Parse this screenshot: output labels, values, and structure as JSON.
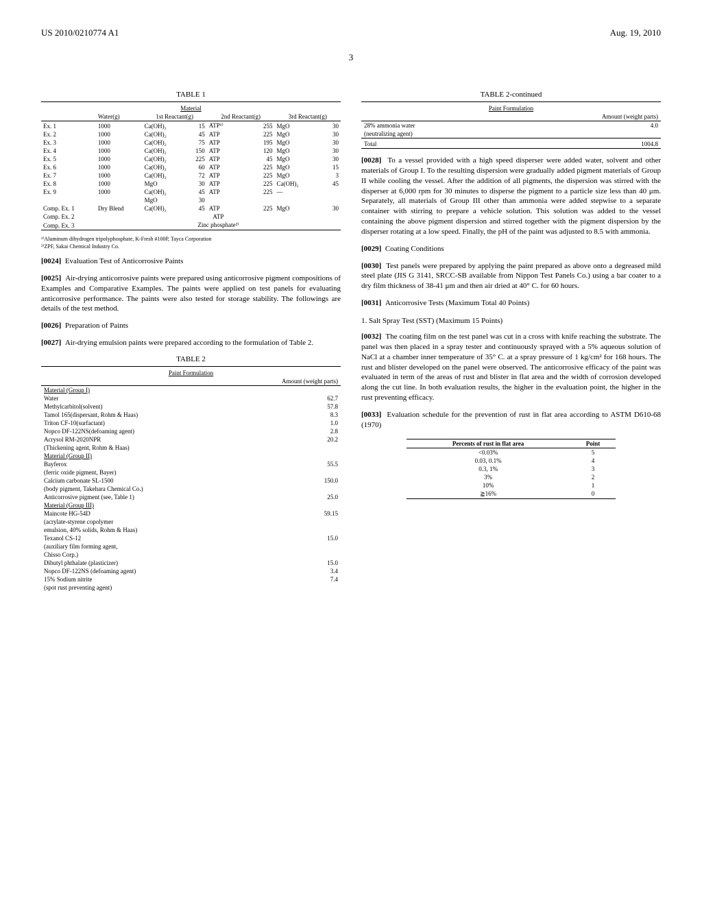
{
  "header": {
    "pub_number": "US 2010/0210774 A1",
    "date": "Aug. 19, 2010",
    "page": "3"
  },
  "table1": {
    "title": "TABLE 1",
    "subtitle": "Material",
    "head": {
      "c1": "",
      "c2": "Water(g)",
      "c3": "1st Reactant(g)",
      "c5": "2nd Reactant(g)",
      "c7": "3rd Reactant(g)"
    },
    "rows": [
      {
        "label": "Ex. 1",
        "water": "1000",
        "r1": "Ca(OH)₂",
        "r1g": "15",
        "r2": "ATP¹⁾",
        "r2g": "255",
        "r3": "MgO",
        "r3g": "30"
      },
      {
        "label": "Ex. 2",
        "water": "1000",
        "r1": "Ca(OH)₂",
        "r1g": "45",
        "r2": "ATP",
        "r2g": "225",
        "r3": "MgO",
        "r3g": "30"
      },
      {
        "label": "Ex. 3",
        "water": "1000",
        "r1": "Ca(OH)₂",
        "r1g": "75",
        "r2": "ATP",
        "r2g": "195",
        "r3": "MgO",
        "r3g": "30"
      },
      {
        "label": "Ex. 4",
        "water": "1000",
        "r1": "Ca(OH)₂",
        "r1g": "150",
        "r2": "ATP",
        "r2g": "120",
        "r3": "MgO",
        "r3g": "30"
      },
      {
        "label": "Ex. 5",
        "water": "1000",
        "r1": "Ca(OH)₂",
        "r1g": "225",
        "r2": "ATP",
        "r2g": "45",
        "r3": "MgO",
        "r3g": "30"
      },
      {
        "label": "Ex. 6",
        "water": "1000",
        "r1": "Ca(OH)₂",
        "r1g": "60",
        "r2": "ATP",
        "r2g": "225",
        "r3": "MgO",
        "r3g": "15"
      },
      {
        "label": "Ex. 7",
        "water": "1000",
        "r1": "Ca(OH)₂",
        "r1g": "72",
        "r2": "ATP",
        "r2g": "225",
        "r3": "MgO",
        "r3g": "3"
      },
      {
        "label": "Ex. 8",
        "water": "1000",
        "r1": "MgO",
        "r1g": "30",
        "r2": "ATP",
        "r2g": "225",
        "r3": "Ca(OH)₂",
        "r3g": "45"
      },
      {
        "label": "Ex. 9",
        "water": "1000",
        "r1": "Ca(OH)₂",
        "r1g": "45",
        "r2": "ATP",
        "r2g": "225",
        "r3": "—",
        "r3g": ""
      },
      {
        "label": "",
        "water": "",
        "r1": "MgO",
        "r1g": "30",
        "r2": "",
        "r2g": "",
        "r3": "",
        "r3g": ""
      },
      {
        "label": "Comp. Ex. 1",
        "water": "Dry Blend",
        "r1": "Ca(OH)₂",
        "r1g": "45",
        "r2": "ATP",
        "r2g": "225",
        "r3": "MgO",
        "r3g": "30"
      }
    ],
    "comp2": {
      "label": "Comp. Ex. 2",
      "text": "ATP"
    },
    "comp3": {
      "label": "Comp. Ex. 3",
      "text": "Zinc phosphate²⁾"
    },
    "fn1": "¹⁾Aluminum dihydrogen tripolyphosphate, K-Fresh #100P, Tayca Corporation",
    "fn2": "²⁾ZPF, Sakai Chemical Industry Co."
  },
  "paras": {
    "p24n": "[0024]",
    "p24": "Evaluation Test of Anticorrosive Paints",
    "p25n": "[0025]",
    "p25": "Air-drying anticorrosive paints were prepared using anticorrosive pigment compositions of Examples and Comparative Examples. The paints were applied on test panels for evaluating anticorrosive performance. The paints were also tested for storage stability. The followings are details of the test method.",
    "p26n": "[0026]",
    "p26": "Preparation of Paints",
    "p27n": "[0027]",
    "p27": "Air-drying emulsion paints were prepared according to the formulation of Table 2.",
    "p28n": "[0028]",
    "p28": "To a vessel provided with a high speed disperser were added water, solvent and other materials of Group I. To the resulting dispersion were gradually added pigment materials of Group II while cooling the vessel. After the addition of all pigments, the dispersion was stirred with the disperser at 6,000 rpm for 30 minutes to disperse the pigment to a particle size less than 40 μm. Separately, all materials of Group III other than ammonia were added stepwise to a separate container with stirring to prepare a vehicle solution. This solution was added to the vessel containing the above pigment dispersion and stirred together with the pigment dispersion by the disperser rotating at a low speed. Finally, the pH of the paint was adjusted to 8.5 with ammonia.",
    "p29n": "[0029]",
    "p29": "Coating Conditions",
    "p30n": "[0030]",
    "p30": "Test panels were prepared by applying the paint prepared as above onto a degreased mild steel plate (JIS G 3141, SRCC-SB available from Nippon Test Panels Co.) using a bar coater to a dry film thickness of 38-41 μm and then air dried at 40° C. for 60 hours.",
    "p31n": "[0031]",
    "p31": "Anticorrosive Tests (Maximum Total 40 Points)",
    "sst": "1. Salt Spray Test (SST) (Maximum 15 Points)",
    "p32n": "[0032]",
    "p32": "The coating film on the test panel was cut in a cross with knife reaching the substrate. The panel was then placed in a spray tester and continuously sprayed with a 5% aqueous solution of NaCl at a chamber inner temperature of 35° C. at a spray pressure of 1 kg/cm² for 168 hours. The rust and blister developed on the panel were observed. The anticorrosive efficacy of the paint was evaluated in term of the areas of rust and blister in flat area and the width of corrosion developed along the cut line. In both evaluation results, the higher in the evaluation point, the higher in the rust preventing efficacy.",
    "p33n": "[0033]",
    "p33": "Evaluation schedule for the prevention of rust in flat area according to ASTM D610-68 (1970)"
  },
  "table2": {
    "title": "TABLE 2",
    "subtitle": "Paint Formulation",
    "amount_head": "Amount (weight parts)",
    "g1": "Material (Group I)",
    "g1rows": [
      {
        "l": "Water",
        "v": "62.7"
      },
      {
        "l": "Methylcarbitol(solvent)",
        "v": "57.8"
      },
      {
        "l": "Tamol 165(dispersant, Rohm & Haas)",
        "v": "8.3"
      },
      {
        "l": "Triton CF-10(surfactant)",
        "v": "1.0"
      },
      {
        "l": "Nopco DF-122NS(defoaming agent)",
        "v": "2.8"
      },
      {
        "l": "Acrysol RM-2020NPR",
        "v": "20.2"
      },
      {
        "l": "(Thickening agent, Rohm & Haas)",
        "v": ""
      }
    ],
    "g2": "Material (Group II)",
    "g2rows": [
      {
        "l": "Bayferox",
        "v": "55.5"
      },
      {
        "l": "(ferric oxide pigment, Bayer)",
        "v": ""
      },
      {
        "l": "Calcium carbonate SL-1500",
        "v": "150.0"
      },
      {
        "l": "(body pigment, Takehara Chemical Co.)",
        "v": ""
      },
      {
        "l": "Anticorrosive pigment (see, Table 1)",
        "v": "25.0"
      }
    ],
    "g3": "Material (Group III)",
    "g3rows": [
      {
        "l": "Maincote HG-54D",
        "v": "59.15"
      },
      {
        "l": "(acrylate-styrene copolymer",
        "v": ""
      },
      {
        "l": "emulsion, 40% solids, Rohm & Haas)",
        "v": ""
      },
      {
        "l": "Texanol CS-12",
        "v": "15.0"
      },
      {
        "l": "(auxiliary film forming agent,",
        "v": ""
      },
      {
        "l": "Chisso Corp.)",
        "v": ""
      },
      {
        "l": "Dibutyl phthalate (plasticizer)",
        "v": "15.0"
      },
      {
        "l": "Nopco DF-122NS (defoaming agent)",
        "v": "3.4"
      },
      {
        "l": "15% Sodium nitrite",
        "v": "7.4"
      },
      {
        "l": "(spot rust preventing agent)",
        "v": ""
      }
    ]
  },
  "table2_cont": {
    "title": "TABLE 2-continued",
    "subtitle": "Paint Formulation",
    "amount_head": "Amount (weight parts)",
    "rows": [
      {
        "l": "28% ammonia water",
        "v": "4.0"
      },
      {
        "l": "(neutralizing agent)",
        "v": ""
      }
    ],
    "total_l": "Total",
    "total_v": "1004.8"
  },
  "eval_table": {
    "h1": "Percents of rust in flat area",
    "h2": "Point",
    "rows": [
      {
        "a": "<0.03%",
        "b": "5"
      },
      {
        "a": "0.03, 0.1%",
        "b": "4"
      },
      {
        "a": "0.3, 1%",
        "b": "3"
      },
      {
        "a": "3%",
        "b": "2"
      },
      {
        "a": "10%",
        "b": "1"
      },
      {
        "a": "≧16%",
        "b": "0"
      }
    ]
  }
}
